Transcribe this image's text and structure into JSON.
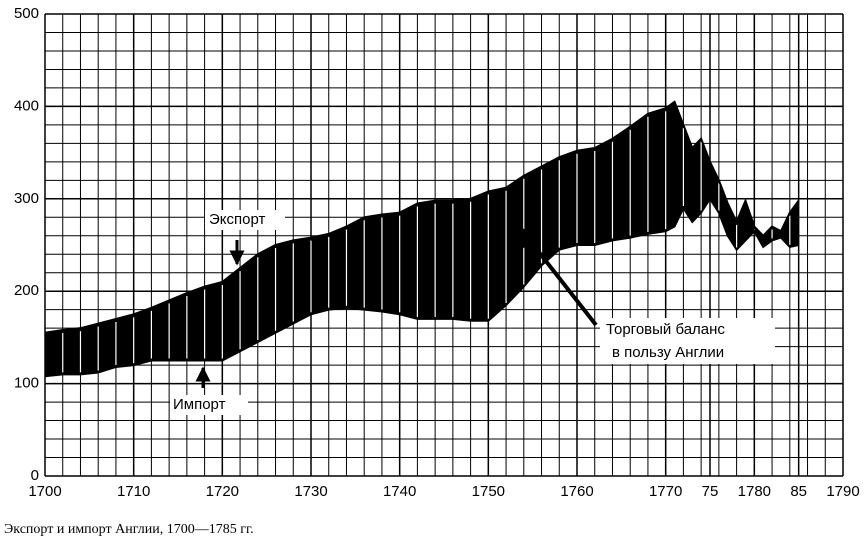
{
  "chart_data": {
    "type": "area-band",
    "caption": "Экспорт и импорт Англии, 1700—1785 гг.",
    "annotations": [
      "Торговый баланс",
      "в пользу Англии"
    ],
    "x": [
      1700,
      1702,
      1704,
      1706,
      1708,
      1710,
      1712,
      1714,
      1716,
      1718,
      1720,
      1722,
      1724,
      1726,
      1728,
      1730,
      1732,
      1734,
      1736,
      1738,
      1740,
      1742,
      1744,
      1746,
      1748,
      1750,
      1752,
      1754,
      1756,
      1758,
      1760,
      1762,
      1764,
      1766,
      1768,
      1770,
      1771,
      1772,
      1773,
      1774,
      1775,
      1776,
      1777,
      1778,
      1779,
      1780,
      1781,
      1782,
      1783,
      1784,
      1785
    ],
    "series": [
      {
        "name": "Экспорт",
        "color": "#000000",
        "values": [
          155,
          158,
          160,
          165,
          170,
          175,
          182,
          190,
          198,
          205,
          210,
          225,
          240,
          250,
          255,
          258,
          262,
          270,
          280,
          283,
          285,
          295,
          298,
          298,
          300,
          308,
          312,
          325,
          335,
          345,
          352,
          355,
          365,
          378,
          392,
          398,
          405,
          380,
          355,
          365,
          340,
          320,
          295,
          275,
          298,
          270,
          260,
          270,
          265,
          285,
          298
        ]
      },
      {
        "name": "Импорт",
        "color": "#000000",
        "values": [
          108,
          110,
          110,
          112,
          118,
          120,
          125,
          125,
          125,
          125,
          125,
          135,
          145,
          155,
          165,
          175,
          180,
          182,
          180,
          178,
          175,
          170,
          170,
          170,
          168,
          168,
          185,
          205,
          228,
          245,
          250,
          250,
          255,
          258,
          262,
          265,
          270,
          290,
          275,
          285,
          300,
          285,
          260,
          245,
          255,
          265,
          248,
          255,
          258,
          248,
          250
        ]
      }
    ],
    "xlim": [
      1700,
      1790
    ],
    "xticks": [
      1700,
      1710,
      1720,
      1730,
      1740,
      1750,
      1760,
      1770,
      {
        "value": 1775,
        "label": "75"
      },
      1780,
      {
        "value": 1785,
        "label": "85"
      },
      1790
    ],
    "ylim": [
      0,
      500
    ],
    "yticks": [
      0,
      100,
      200,
      300,
      400,
      500
    ],
    "grid": true
  }
}
